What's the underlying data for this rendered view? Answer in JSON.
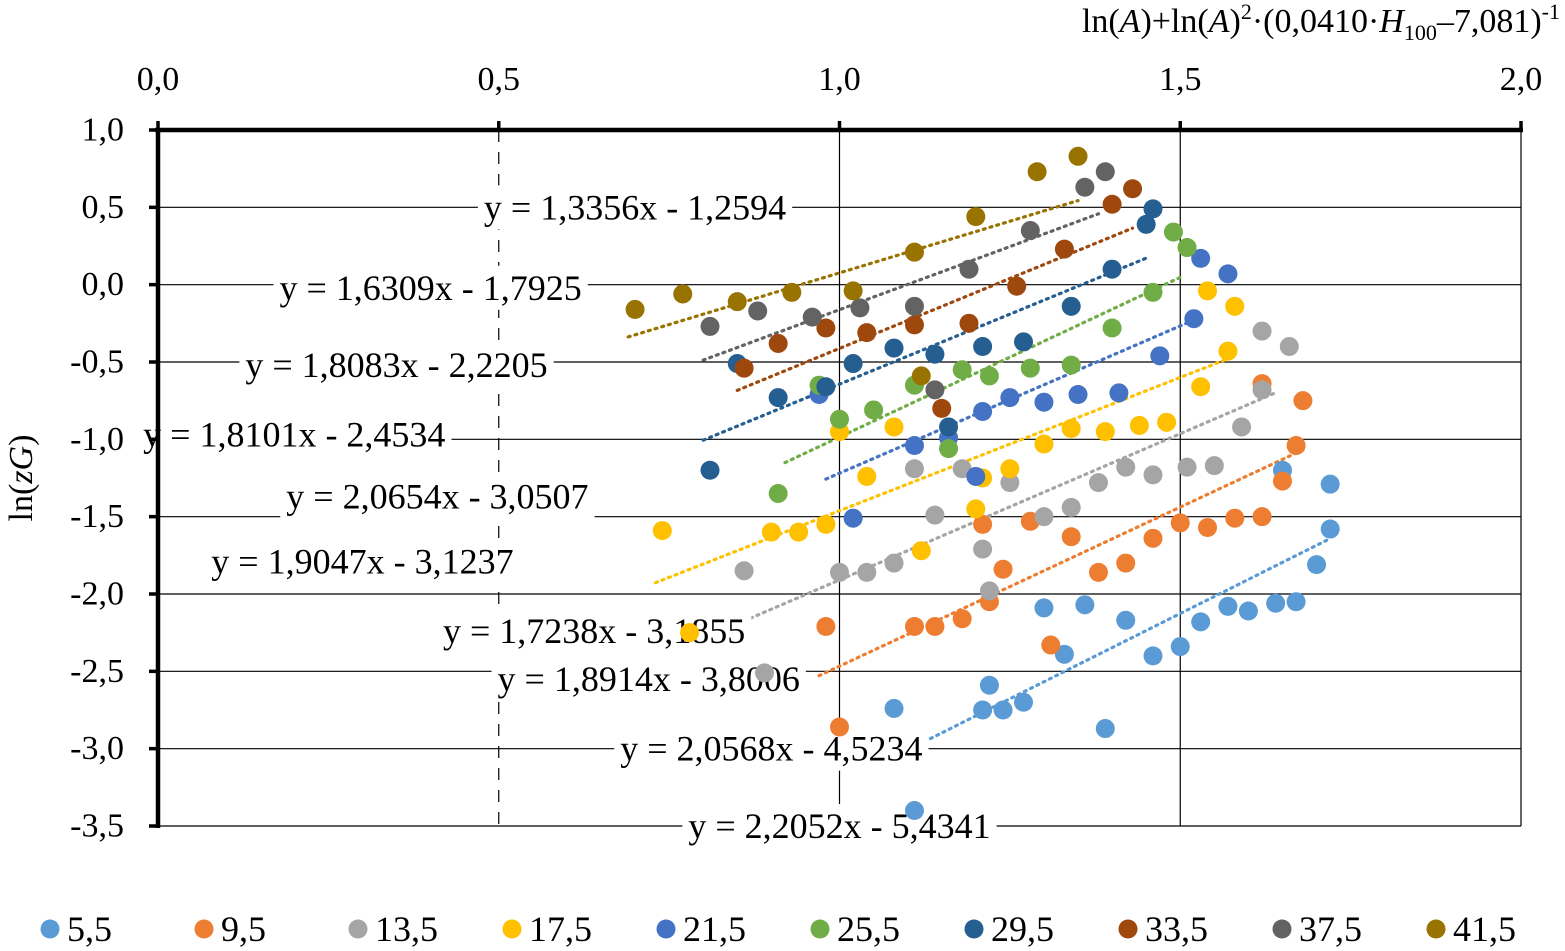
{
  "chart_data": {
    "type": "scatter",
    "x_axis_title": "ln(A)+ln(A)²·(0,0410·H₁₀₀–7,081)⁻¹",
    "x_axis_title_parts": {
      "p1": "ln(",
      "A1": "A",
      "p2": ")+ln(",
      "A2": "A",
      "p3": ")",
      "sq": "2",
      "p4": "·(0,0410·",
      "H": "H",
      "sub": "100",
      "p5": "–7,081)",
      "inv": "-1"
    },
    "y_axis_title": "ln(zG)",
    "y_axis_title_parts": {
      "pre": "ln(",
      "z": "z",
      "G": "G",
      "post": ")"
    },
    "xlim": [
      0.0,
      2.0
    ],
    "ylim": [
      -3.5,
      1.0
    ],
    "x_ticks": [
      0.0,
      0.5,
      1.0,
      1.5,
      2.0
    ],
    "x_tick_labels": [
      "0,0",
      "0,5",
      "1,0",
      "1,5",
      "2,0"
    ],
    "y_ticks": [
      1.0,
      0.5,
      0.0,
      -0.5,
      -1.0,
      -1.5,
      -2.0,
      -2.5,
      -3.0,
      -3.5
    ],
    "y_tick_labels": [
      "1,0",
      "0,5",
      "0,0",
      "-0,5",
      "-1,0",
      "-1,5",
      "-2,0",
      "-2,5",
      "-3,0",
      "-3,5"
    ],
    "x_axis_position": "top",
    "grid": {
      "horizontal": true,
      "vertical": true
    },
    "legend": {
      "position": "bottom"
    },
    "series": [
      {
        "name": "5,5",
        "color": "#5B9BD5",
        "points": [
          [
            1.08,
            -2.74
          ],
          [
            1.11,
            -3.4
          ],
          [
            1.21,
            -2.75
          ],
          [
            1.22,
            -2.59
          ],
          [
            1.24,
            -2.75
          ],
          [
            1.27,
            -2.7
          ],
          [
            1.3,
            -2.09
          ],
          [
            1.33,
            -2.39
          ],
          [
            1.36,
            -2.07
          ],
          [
            1.39,
            -2.87
          ],
          [
            1.42,
            -2.17
          ],
          [
            1.46,
            -2.4
          ],
          [
            1.5,
            -2.34
          ],
          [
            1.53,
            -2.18
          ],
          [
            1.57,
            -2.08
          ],
          [
            1.6,
            -2.11
          ],
          [
            1.64,
            -2.06
          ],
          [
            1.67,
            -2.05
          ],
          [
            1.7,
            -1.81
          ],
          [
            1.72,
            -1.58
          ],
          [
            1.72,
            -1.29
          ],
          [
            1.65,
            -1.2
          ]
        ],
        "trendline": {
          "equation": "y = 2,2052x - 5,4341",
          "x_range": [
            1.06,
            1.72
          ],
          "label_pos": [
            1.0,
            -3.5
          ]
        }
      },
      {
        "name": "9,5",
        "color": "#ED7D31",
        "points": [
          [
            0.98,
            -2.21
          ],
          [
            1.0,
            -2.86
          ],
          [
            1.11,
            -2.21
          ],
          [
            1.14,
            -2.21
          ],
          [
            1.18,
            -2.16
          ],
          [
            1.21,
            -1.55
          ],
          [
            1.22,
            -2.05
          ],
          [
            1.24,
            -1.84
          ],
          [
            1.28,
            -1.53
          ],
          [
            1.31,
            -2.33
          ],
          [
            1.34,
            -1.63
          ],
          [
            1.38,
            -1.86
          ],
          [
            1.42,
            -1.8
          ],
          [
            1.46,
            -1.64
          ],
          [
            1.5,
            -1.54
          ],
          [
            1.54,
            -1.57
          ],
          [
            1.58,
            -1.51
          ],
          [
            1.62,
            -1.5
          ],
          [
            1.65,
            -1.27
          ],
          [
            1.67,
            -1.04
          ],
          [
            1.62,
            -0.64
          ],
          [
            1.68,
            -0.75
          ]
        ],
        "trendline": {
          "equation": "y = 2,0568x - 4,5234",
          "x_range": [
            0.97,
            1.68
          ],
          "label_pos": [
            0.9,
            -3.0
          ]
        }
      },
      {
        "name": "13,5",
        "color": "#A5A5A5",
        "points": [
          [
            0.86,
            -1.85
          ],
          [
            0.89,
            -2.51
          ],
          [
            1.0,
            -1.86
          ],
          [
            1.04,
            -1.86
          ],
          [
            1.08,
            -1.8
          ],
          [
            1.11,
            -1.19
          ],
          [
            1.14,
            -1.49
          ],
          [
            1.18,
            -1.19
          ],
          [
            1.21,
            -1.71
          ],
          [
            1.22,
            -1.98
          ],
          [
            1.25,
            -1.28
          ],
          [
            1.3,
            -1.5
          ],
          [
            1.34,
            -1.44
          ],
          [
            1.38,
            -1.28
          ],
          [
            1.42,
            -1.18
          ],
          [
            1.46,
            -1.23
          ],
          [
            1.51,
            -1.18
          ],
          [
            1.55,
            -1.17
          ],
          [
            1.59,
            -0.92
          ],
          [
            1.62,
            -0.68
          ],
          [
            1.62,
            -0.3
          ],
          [
            1.66,
            -0.4
          ]
        ],
        "trendline": {
          "equation": "y = 1,8914x - 3,8006",
          "x_range": [
            0.86,
            1.64
          ],
          "label_pos": [
            0.72,
            -2.55
          ]
        }
      },
      {
        "name": "17,5",
        "color": "#FFC000",
        "points": [
          [
            0.74,
            -1.59
          ],
          [
            0.78,
            -2.25
          ],
          [
            0.9,
            -1.6
          ],
          [
            0.94,
            -1.6
          ],
          [
            0.98,
            -1.55
          ],
          [
            1.0,
            -0.95
          ],
          [
            1.04,
            -1.24
          ],
          [
            1.08,
            -0.92
          ],
          [
            1.12,
            -1.72
          ],
          [
            1.2,
            -1.45
          ],
          [
            1.21,
            -1.25
          ],
          [
            1.25,
            -1.19
          ],
          [
            1.3,
            -1.03
          ],
          [
            1.34,
            -0.93
          ],
          [
            1.39,
            -0.95
          ],
          [
            1.44,
            -0.91
          ],
          [
            1.48,
            -0.89
          ],
          [
            1.53,
            -0.66
          ],
          [
            1.57,
            -0.43
          ],
          [
            1.54,
            -0.04
          ],
          [
            1.58,
            -0.14
          ]
        ],
        "trendline": {
          "equation": "y = 1,7238x - 3,1855",
          "x_range": [
            0.73,
            1.57
          ],
          "label_pos": [
            0.64,
            -2.24
          ]
        }
      },
      {
        "name": "21,5",
        "color": "#4472C4",
        "points": [
          [
            0.97,
            -0.71
          ],
          [
            1.02,
            -1.51
          ],
          [
            1.11,
            -1.04
          ],
          [
            1.16,
            -0.99
          ],
          [
            1.2,
            -1.24
          ],
          [
            1.21,
            -0.82
          ],
          [
            1.25,
            -0.73
          ],
          [
            1.3,
            -0.76
          ],
          [
            1.35,
            -0.71
          ],
          [
            1.41,
            -0.7
          ],
          [
            1.47,
            -0.46
          ],
          [
            1.52,
            -0.22
          ],
          [
            1.53,
            0.17
          ],
          [
            1.57,
            0.07
          ]
        ],
        "trendline": {
          "equation": "y = 1,9047x - 3,1237",
          "x_range": [
            0.98,
            1.53
          ],
          "label_pos": [
            0.3,
            -1.79
          ]
        }
      },
      {
        "name": "25,5",
        "color": "#70AD47",
        "points": [
          [
            0.91,
            -1.35
          ],
          [
            0.97,
            -0.65
          ],
          [
            1.0,
            -0.87
          ],
          [
            1.05,
            -0.81
          ],
          [
            1.11,
            -0.65
          ],
          [
            1.16,
            -1.06
          ],
          [
            1.18,
            -0.55
          ],
          [
            1.22,
            -0.59
          ],
          [
            1.28,
            -0.54
          ],
          [
            1.34,
            -0.52
          ],
          [
            1.4,
            -0.28
          ],
          [
            1.46,
            -0.05
          ],
          [
            1.49,
            0.34
          ],
          [
            1.51,
            0.24
          ]
        ],
        "trendline": {
          "equation": "y = 2,0654x - 3,0507",
          "x_range": [
            0.92,
            1.5
          ],
          "label_pos": [
            0.41,
            -1.37
          ]
        }
      },
      {
        "name": "29,5",
        "color": "#255E91",
        "points": [
          [
            0.81,
            -1.2
          ],
          [
            0.85,
            -0.51
          ],
          [
            0.91,
            -0.73
          ],
          [
            0.98,
            -0.66
          ],
          [
            1.02,
            -0.51
          ],
          [
            1.08,
            -0.41
          ],
          [
            1.14,
            -0.45
          ],
          [
            1.16,
            -0.92
          ],
          [
            1.21,
            -0.4
          ],
          [
            1.27,
            -0.37
          ],
          [
            1.34,
            -0.14
          ],
          [
            1.4,
            0.1
          ],
          [
            1.45,
            0.39
          ],
          [
            1.46,
            0.49
          ]
        ],
        "trendline": {
          "equation": "y = 1,8101x - 2,4534",
          "x_range": [
            0.8,
            1.45
          ],
          "label_pos": [
            0.2,
            -0.97
          ]
        }
      },
      {
        "name": "33,5",
        "color": "#9E480E",
        "points": [
          [
            0.86,
            -0.54
          ],
          [
            0.91,
            -0.38
          ],
          [
            0.98,
            -0.28
          ],
          [
            1.04,
            -0.31
          ],
          [
            1.11,
            -0.26
          ],
          [
            1.15,
            -0.8
          ],
          [
            1.19,
            -0.25
          ],
          [
            1.26,
            -0.01
          ],
          [
            1.33,
            0.23
          ],
          [
            1.4,
            0.52
          ],
          [
            1.43,
            0.62
          ]
        ],
        "trendline": {
          "equation": "y = 1,8083x - 2,2205",
          "x_range": [
            0.85,
            1.43
          ],
          "label_pos": [
            0.35,
            -0.52
          ]
        }
      },
      {
        "name": "37,5",
        "color": "#636363",
        "points": [
          [
            0.81,
            -0.27
          ],
          [
            0.88,
            -0.17
          ],
          [
            0.96,
            -0.21
          ],
          [
            1.03,
            -0.15
          ],
          [
            1.11,
            -0.14
          ],
          [
            1.14,
            -0.68
          ],
          [
            1.19,
            0.1
          ],
          [
            1.28,
            0.35
          ],
          [
            1.36,
            0.63
          ],
          [
            1.39,
            0.73
          ]
        ],
        "trendline": {
          "equation": "y = 1,6309x - 1,7925",
          "x_range": [
            0.8,
            1.38
          ],
          "label_pos": [
            0.4,
            -0.02
          ]
        }
      },
      {
        "name": "41,5",
        "color": "#997300",
        "points": [
          [
            0.7,
            -0.16
          ],
          [
            0.77,
            -0.06
          ],
          [
            0.85,
            -0.11
          ],
          [
            0.93,
            -0.05
          ],
          [
            1.02,
            -0.04
          ],
          [
            1.11,
            0.21
          ],
          [
            1.12,
            -0.59
          ],
          [
            1.2,
            0.44
          ],
          [
            1.29,
            0.73
          ],
          [
            1.35,
            0.83
          ]
        ],
        "trendline": {
          "equation": "y = 1,3356x - 1,2594",
          "x_range": [
            0.69,
            1.35
          ],
          "label_pos": [
            0.7,
            0.5
          ]
        }
      }
    ]
  }
}
